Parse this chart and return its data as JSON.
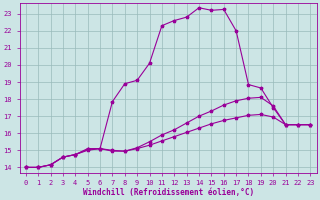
{
  "title": "",
  "xlabel": "Windchill (Refroidissement éolien,°C)",
  "bg_color": "#cce5e5",
  "line_color": "#990099",
  "grid_color": "#99bbbb",
  "xlim": [
    -0.5,
    23.5
  ],
  "ylim": [
    13.7,
    23.6
  ],
  "xticks": [
    0,
    1,
    2,
    3,
    4,
    5,
    6,
    7,
    8,
    9,
    10,
    11,
    12,
    13,
    14,
    15,
    16,
    17,
    18,
    19,
    20,
    21,
    22,
    23
  ],
  "yticks": [
    14,
    15,
    16,
    17,
    18,
    19,
    20,
    21,
    22,
    23
  ],
  "line1_x": [
    0,
    1,
    2,
    3,
    4,
    5,
    6,
    7,
    8,
    9,
    10,
    11,
    12,
    13,
    14,
    15,
    16,
    17,
    18,
    19,
    20,
    21,
    22,
    23
  ],
  "line1_y": [
    14.0,
    14.0,
    14.15,
    14.6,
    14.75,
    15.0,
    15.1,
    15.0,
    14.95,
    15.1,
    15.3,
    15.55,
    15.8,
    16.05,
    16.3,
    16.55,
    16.75,
    16.9,
    17.05,
    17.1,
    16.95,
    16.5,
    16.5,
    16.5
  ],
  "line2_x": [
    0,
    1,
    2,
    3,
    4,
    5,
    6,
    7,
    8,
    9,
    10,
    11,
    12,
    13,
    14,
    15,
    16,
    17,
    18,
    19,
    20,
    21,
    22,
    23
  ],
  "line2_y": [
    14.0,
    14.0,
    14.15,
    14.6,
    14.75,
    15.05,
    15.1,
    14.95,
    14.95,
    15.15,
    15.5,
    15.9,
    16.2,
    16.6,
    17.0,
    17.3,
    17.65,
    17.9,
    18.05,
    18.1,
    17.6,
    16.5,
    16.5,
    16.5
  ],
  "line3_x": [
    0,
    1,
    2,
    3,
    4,
    5,
    6,
    7,
    8,
    9,
    10,
    11,
    12,
    13,
    14,
    15,
    16,
    17,
    18,
    19,
    20,
    21,
    22,
    23
  ],
  "line3_y": [
    14.0,
    14.0,
    14.15,
    14.6,
    14.75,
    15.1,
    15.1,
    17.85,
    18.9,
    19.1,
    20.1,
    22.3,
    22.6,
    22.8,
    23.35,
    23.2,
    23.25,
    22.0,
    18.85,
    18.65,
    17.5,
    16.5,
    16.5,
    16.5
  ],
  "markersize": 2.5,
  "linewidth": 0.8,
  "tick_fontsize": 5,
  "xlabel_fontsize": 5.5
}
